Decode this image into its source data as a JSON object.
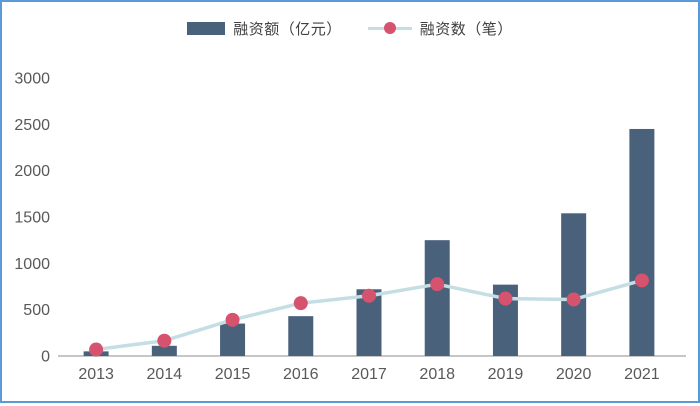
{
  "window": {
    "border_color": "#5b9bd5",
    "background": "#ffffff"
  },
  "legend": {
    "position": "top-center",
    "items": [
      {
        "label": "融资额（亿元）",
        "type": "bar",
        "color": "#4a617c"
      },
      {
        "label": "融资数（笔）",
        "type": "line",
        "line_color": "#c4dee3",
        "marker_color": "#d6536f"
      }
    ]
  },
  "chart_data": {
    "type": "bar+line",
    "title": "",
    "xlabel": "",
    "ylabel": "",
    "categories": [
      "2013",
      "2014",
      "2015",
      "2016",
      "2017",
      "2018",
      "2019",
      "2020",
      "2021"
    ],
    "series": [
      {
        "name": "融资额（亿元）",
        "type": "bar",
        "color": "#4a617c",
        "values": [
          50,
          110,
          350,
          430,
          720,
          1250,
          770,
          1540,
          2450
        ]
      },
      {
        "name": "融资数（笔）",
        "type": "line",
        "line_color": "#c4dee3",
        "marker_color": "#d6536f",
        "values": [
          70,
          165,
          390,
          570,
          650,
          775,
          620,
          610,
          815
        ]
      }
    ],
    "ylim": [
      0,
      3000
    ],
    "yticks": [
      0,
      500,
      1000,
      1500,
      2000,
      2500,
      3000
    ],
    "grid": false,
    "legend_position": "top-center",
    "axis_color": "#b3b3b3",
    "tick_label_color": "#595959"
  }
}
